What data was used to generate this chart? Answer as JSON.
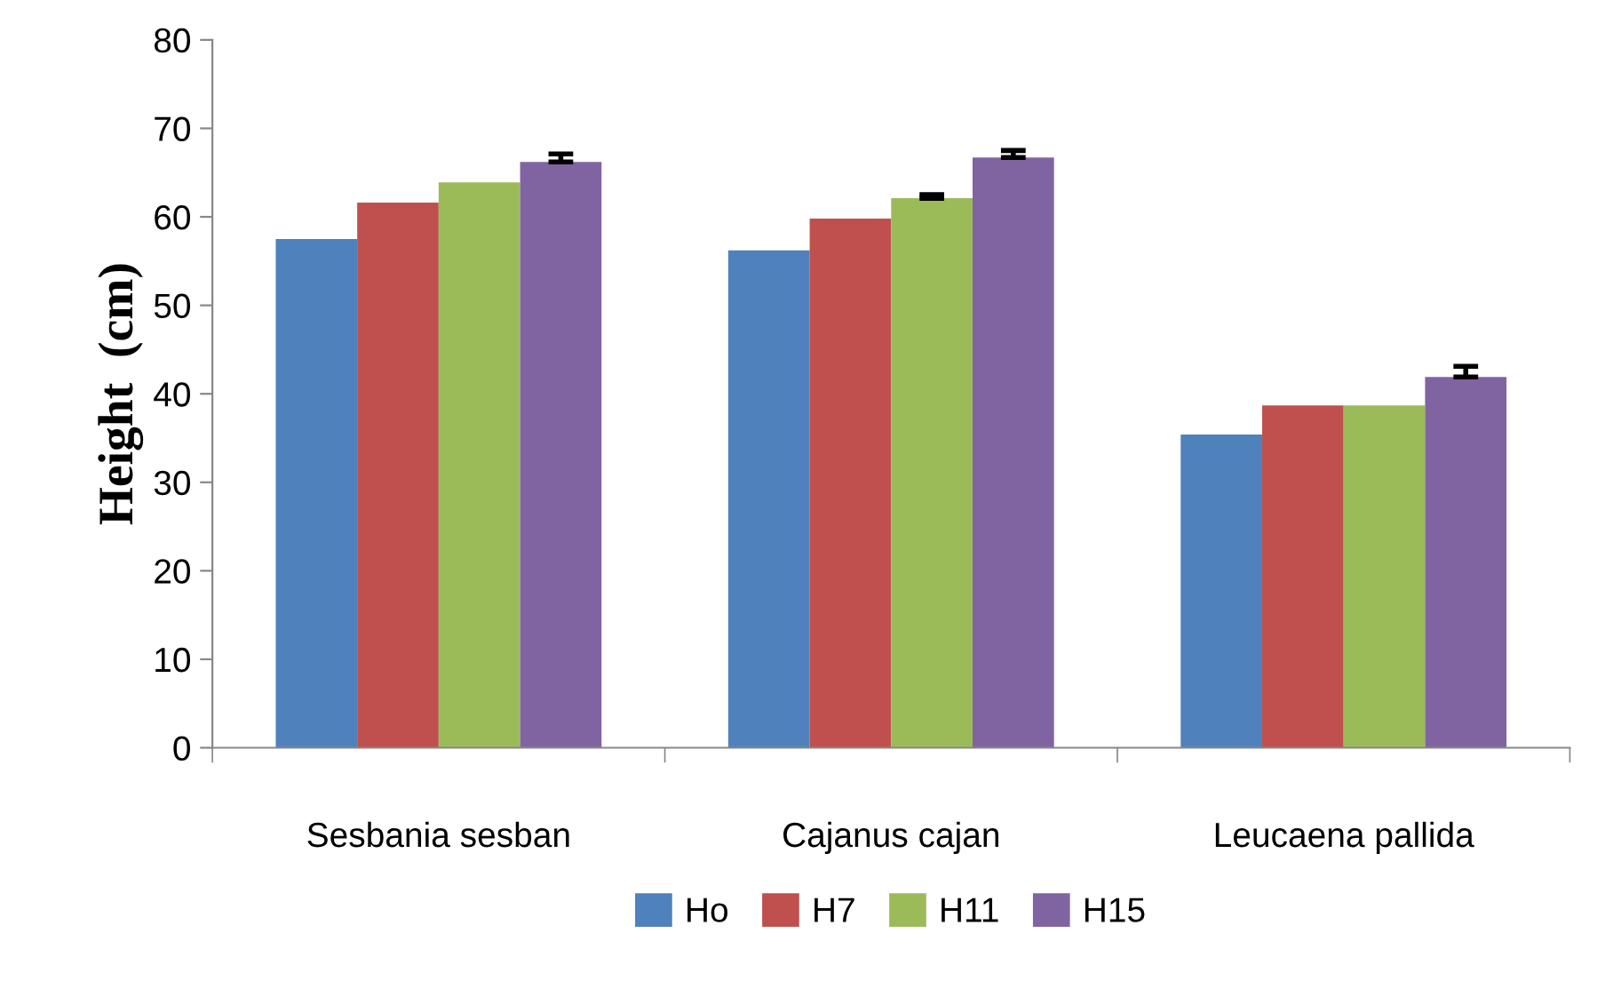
{
  "chart_data": {
    "type": "bar",
    "ylabel": "Height  (cm)",
    "categories": [
      "Sesbania sesban",
      "Cajanus cajan",
      "Leucaena pallida"
    ],
    "series": [
      {
        "name": "Ho",
        "color": "#4f81bd",
        "values": [
          57.5,
          56.2,
          35.4
        ]
      },
      {
        "name": "H7",
        "color": "#c0504d",
        "values": [
          61.6,
          59.8,
          38.7
        ]
      },
      {
        "name": "H11",
        "color": "#9bbb59",
        "values": [
          63.9,
          62.1,
          38.7
        ],
        "errors": [
          null,
          0.4,
          null
        ]
      },
      {
        "name": "H15",
        "color": "#8064a2",
        "values": [
          66.2,
          66.7,
          41.9
        ],
        "errors": [
          0.9,
          0.8,
          1.2
        ]
      }
    ],
    "ylim": [
      0,
      80
    ],
    "yticks": [
      0,
      10,
      20,
      30,
      40,
      50,
      60,
      70,
      80
    ],
    "grid": false,
    "legend": "bottom"
  }
}
